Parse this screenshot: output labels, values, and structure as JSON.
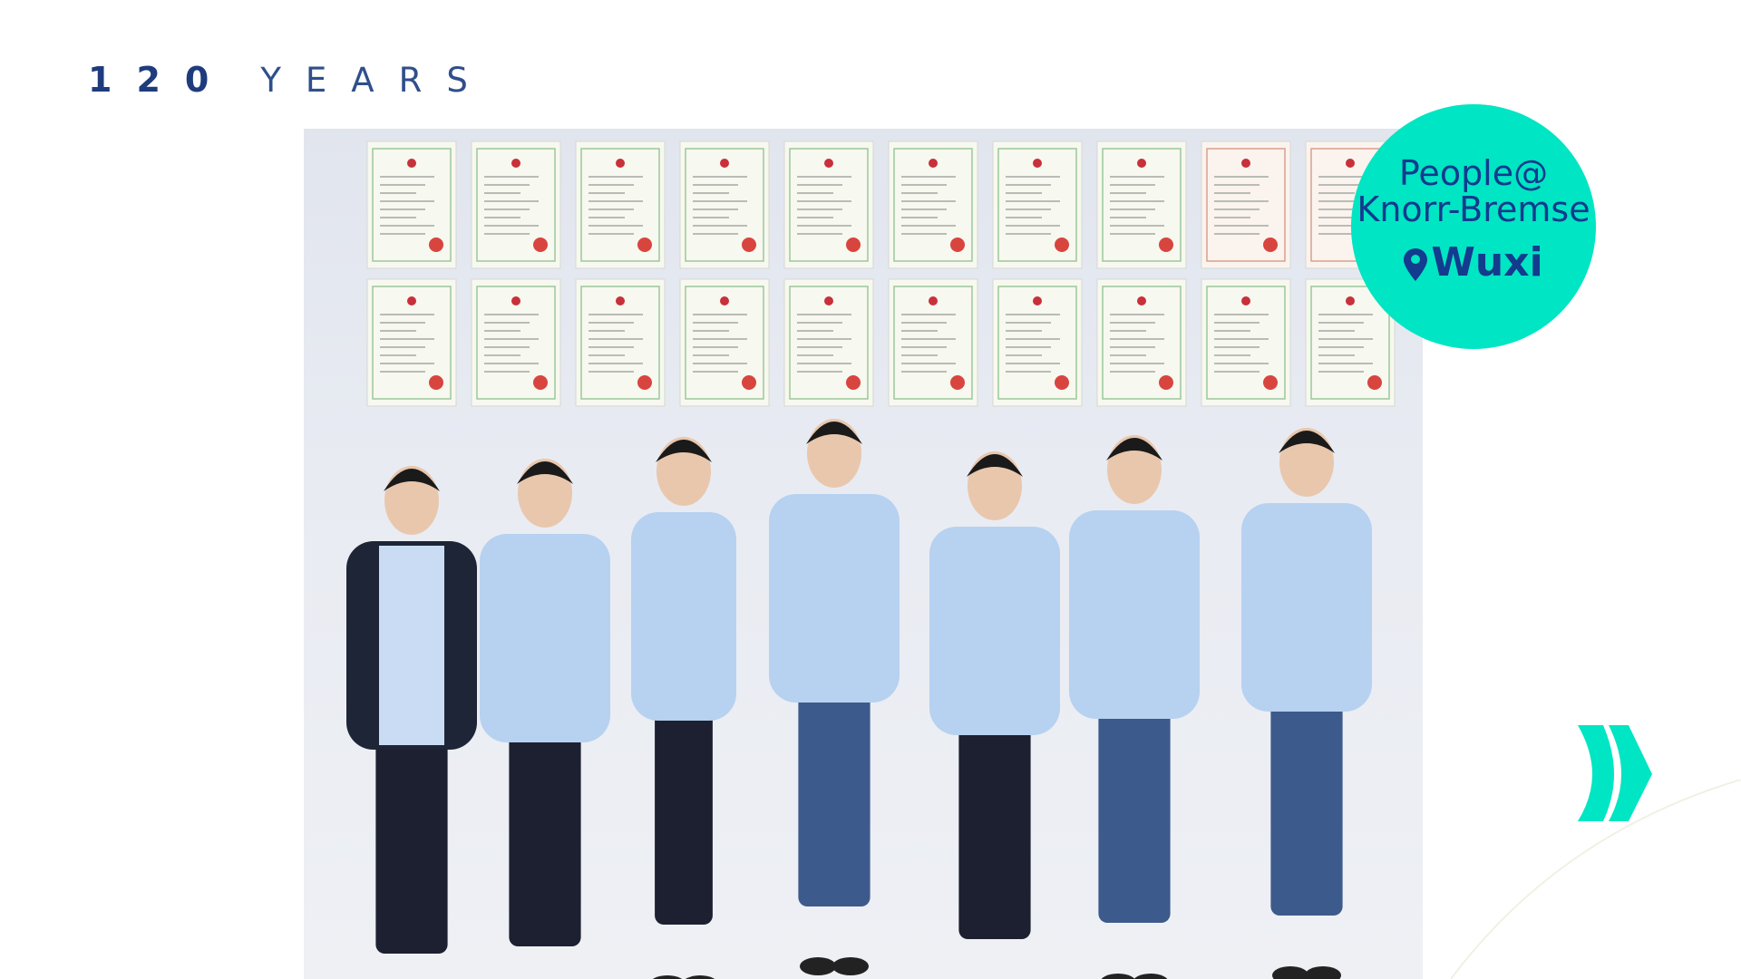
{
  "header": {
    "number": "120",
    "word": "YEARS"
  },
  "badge": {
    "line1": "People@",
    "line2": "Knorr-Bremse",
    "location": "Wuxi",
    "icon": "map-pin-icon"
  },
  "nav": {
    "icon": "double-chevron-right-icon"
  },
  "colors": {
    "brand_navy": "#1e3c7d",
    "accent_teal": "#00e5c3"
  }
}
